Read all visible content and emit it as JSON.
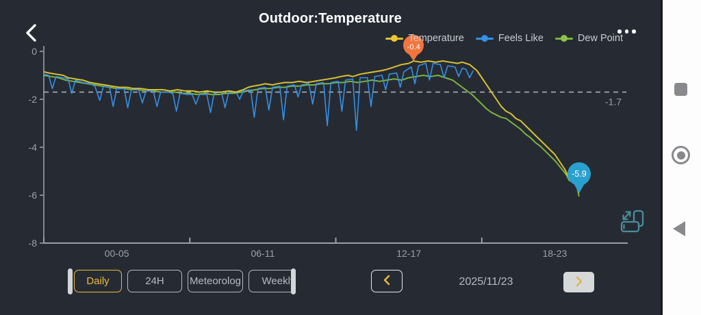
{
  "header": {
    "title": "Outdoor:Temperature",
    "back_icon": "chevron-left",
    "menu_icon": "ellipsis-horizontal"
  },
  "legend": {
    "items": [
      {
        "label": "Temperature",
        "line": "#d9c132",
        "dot": "#f0c62f"
      },
      {
        "label": "Feels Like",
        "line": "#3490e8",
        "dot": "#3490e8"
      },
      {
        "label": "Dew Point",
        "line": "#7cb33e",
        "dot": "#8bc34a"
      }
    ]
  },
  "chart_data": {
    "type": "line",
    "title": "Outdoor:Temperature",
    "xlabel": "",
    "ylabel": "",
    "xlim": [
      0,
      24
    ],
    "ylim": [
      0,
      -8
    ],
    "grid": false,
    "legend_position": "top-right",
    "yticks": [
      {
        "value": 0,
        "label": "0"
      },
      {
        "value": -2,
        "label": "-2"
      },
      {
        "value": -4,
        "label": "-4"
      },
      {
        "value": -6,
        "label": "-6"
      },
      {
        "value": -8,
        "label": "-8"
      }
    ],
    "xticks": [
      0,
      6,
      12,
      18
    ],
    "xtick_labels": [
      {
        "pos": 3,
        "label": "00-05"
      },
      {
        "pos": 9,
        "label": "06-11"
      },
      {
        "pos": 15,
        "label": "12-17"
      },
      {
        "pos": 21,
        "label": "18-23"
      }
    ],
    "reference_line": {
      "value": -1.7,
      "label": "-1.7"
    },
    "markers": [
      {
        "type": "pin",
        "series": "Temperature",
        "x": 15.2,
        "y": -0.4,
        "label": "-0.4",
        "color": "#f2753d"
      },
      {
        "type": "balloon",
        "series": "Temperature",
        "x": 22.0,
        "y": -5.9,
        "label": "-5.9",
        "color": "#2aa0cf"
      }
    ],
    "series": [
      {
        "name": "Temperature",
        "color": "#d9c132",
        "width": 2,
        "points": [
          [
            0,
            -0.85
          ],
          [
            0.2,
            -0.9
          ],
          [
            0.5,
            -0.95
          ],
          [
            0.8,
            -1.0
          ],
          [
            1.0,
            -1.1
          ],
          [
            1.3,
            -1.15
          ],
          [
            1.6,
            -1.2
          ],
          [
            1.9,
            -1.3
          ],
          [
            2.2,
            -1.35
          ],
          [
            2.5,
            -1.4
          ],
          [
            2.8,
            -1.45
          ],
          [
            3.1,
            -1.5
          ],
          [
            3.4,
            -1.5
          ],
          [
            3.7,
            -1.55
          ],
          [
            4.0,
            -1.55
          ],
          [
            4.3,
            -1.6
          ],
          [
            4.6,
            -1.6
          ],
          [
            4.9,
            -1.6
          ],
          [
            5.2,
            -1.65
          ],
          [
            5.5,
            -1.6
          ],
          [
            5.8,
            -1.65
          ],
          [
            6.1,
            -1.65
          ],
          [
            6.4,
            -1.7
          ],
          [
            6.7,
            -1.65
          ],
          [
            7.0,
            -1.7
          ],
          [
            7.3,
            -1.7
          ],
          [
            7.6,
            -1.65
          ],
          [
            7.9,
            -1.7
          ],
          [
            8.2,
            -1.6
          ],
          [
            8.4,
            -1.5
          ],
          [
            8.6,
            -1.45
          ],
          [
            8.9,
            -1.4
          ],
          [
            9.1,
            -1.35
          ],
          [
            9.4,
            -1.4
          ],
          [
            9.6,
            -1.35
          ],
          [
            9.9,
            -1.3
          ],
          [
            10.2,
            -1.3
          ],
          [
            10.5,
            -1.25
          ],
          [
            10.8,
            -1.3
          ],
          [
            11.1,
            -1.25
          ],
          [
            11.4,
            -1.2
          ],
          [
            11.7,
            -1.15
          ],
          [
            12.0,
            -1.1
          ],
          [
            12.2,
            -1.05
          ],
          [
            12.5,
            -1.0
          ],
          [
            12.7,
            -1.05
          ],
          [
            13.0,
            -0.95
          ],
          [
            13.3,
            -0.9
          ],
          [
            13.6,
            -0.85
          ],
          [
            13.9,
            -0.8
          ],
          [
            14.1,
            -0.75
          ],
          [
            14.4,
            -0.65
          ],
          [
            14.7,
            -0.55
          ],
          [
            15.0,
            -0.5
          ],
          [
            15.2,
            -0.4
          ],
          [
            15.5,
            -0.45
          ],
          [
            15.8,
            -0.4
          ],
          [
            16.1,
            -0.45
          ],
          [
            16.4,
            -0.4
          ],
          [
            16.7,
            -0.45
          ],
          [
            17.0,
            -0.5
          ],
          [
            17.2,
            -0.45
          ],
          [
            17.5,
            -0.55
          ],
          [
            17.8,
            -0.8
          ],
          [
            18.0,
            -1.1
          ],
          [
            18.2,
            -1.4
          ],
          [
            18.4,
            -1.7
          ],
          [
            18.6,
            -2.0
          ],
          [
            18.8,
            -2.3
          ],
          [
            19.0,
            -2.5
          ],
          [
            19.2,
            -2.6
          ],
          [
            19.4,
            -2.8
          ],
          [
            19.6,
            -2.9
          ],
          [
            19.8,
            -3.1
          ],
          [
            20.0,
            -3.3
          ],
          [
            20.2,
            -3.5
          ],
          [
            20.4,
            -3.7
          ],
          [
            20.6,
            -3.9
          ],
          [
            20.8,
            -4.1
          ],
          [
            21.0,
            -4.3
          ],
          [
            21.2,
            -4.6
          ],
          [
            21.4,
            -4.9
          ],
          [
            21.5,
            -5.1
          ],
          [
            21.6,
            -5.3
          ],
          [
            21.7,
            -5.2
          ],
          [
            21.8,
            -5.4
          ],
          [
            21.9,
            -5.5
          ],
          [
            22.0,
            -5.9
          ]
        ]
      },
      {
        "name": "Feels Like",
        "color": "#3490e8",
        "width": 1.6,
        "points": [
          [
            0,
            -0.95
          ],
          [
            0.2,
            -1.0
          ],
          [
            0.35,
            -1.55
          ],
          [
            0.5,
            -1.05
          ],
          [
            0.8,
            -1.1
          ],
          [
            1.0,
            -1.15
          ],
          [
            1.15,
            -1.75
          ],
          [
            1.3,
            -1.2
          ],
          [
            1.6,
            -1.3
          ],
          [
            1.9,
            -1.35
          ],
          [
            2.1,
            -1.45
          ],
          [
            2.3,
            -2.05
          ],
          [
            2.45,
            -1.45
          ],
          [
            2.7,
            -1.5
          ],
          [
            2.85,
            -2.3
          ],
          [
            3.0,
            -1.55
          ],
          [
            3.3,
            -1.55
          ],
          [
            3.45,
            -2.35
          ],
          [
            3.6,
            -1.6
          ],
          [
            3.9,
            -1.6
          ],
          [
            4.05,
            -2.15
          ],
          [
            4.2,
            -1.65
          ],
          [
            4.5,
            -1.65
          ],
          [
            4.65,
            -2.3
          ],
          [
            4.8,
            -1.7
          ],
          [
            5.1,
            -1.7
          ],
          [
            5.3,
            -1.75
          ],
          [
            5.45,
            -2.5
          ],
          [
            5.6,
            -1.75
          ],
          [
            5.9,
            -1.8
          ],
          [
            6.1,
            -1.8
          ],
          [
            6.25,
            -2.2
          ],
          [
            6.4,
            -1.8
          ],
          [
            6.7,
            -1.8
          ],
          [
            6.85,
            -2.55
          ],
          [
            7.0,
            -1.75
          ],
          [
            7.3,
            -1.7
          ],
          [
            7.45,
            -2.35
          ],
          [
            7.6,
            -1.7
          ],
          [
            7.9,
            -1.7
          ],
          [
            8.05,
            -2.0
          ],
          [
            8.2,
            -1.65
          ],
          [
            8.5,
            -1.6
          ],
          [
            8.65,
            -2.75
          ],
          [
            8.8,
            -1.55
          ],
          [
            9.1,
            -1.5
          ],
          [
            9.25,
            -2.45
          ],
          [
            9.4,
            -1.5
          ],
          [
            9.7,
            -1.45
          ],
          [
            9.85,
            -2.85
          ],
          [
            10.0,
            -1.45
          ],
          [
            10.3,
            -1.4
          ],
          [
            10.45,
            -1.9
          ],
          [
            10.6,
            -1.4
          ],
          [
            10.9,
            -1.35
          ],
          [
            11.05,
            -2.2
          ],
          [
            11.2,
            -1.35
          ],
          [
            11.5,
            -1.3
          ],
          [
            11.65,
            -3.1
          ],
          [
            11.8,
            -1.3
          ],
          [
            12.1,
            -1.25
          ],
          [
            12.25,
            -2.5
          ],
          [
            12.4,
            -1.2
          ],
          [
            12.7,
            -1.15
          ],
          [
            12.85,
            -3.3
          ],
          [
            13.0,
            -1.1
          ],
          [
            13.3,
            -1.1
          ],
          [
            13.45,
            -2.3
          ],
          [
            13.6,
            -1.05
          ],
          [
            13.9,
            -1.0
          ],
          [
            14.05,
            -1.6
          ],
          [
            14.2,
            -0.95
          ],
          [
            14.5,
            -0.9
          ],
          [
            14.65,
            -1.5
          ],
          [
            14.8,
            -0.85
          ],
          [
            15.1,
            -0.65
          ],
          [
            15.25,
            -1.35
          ],
          [
            15.4,
            -0.6
          ],
          [
            15.7,
            -0.5
          ],
          [
            15.85,
            -1.2
          ],
          [
            16.0,
            -0.5
          ],
          [
            16.3,
            -0.55
          ],
          [
            16.45,
            -1.1
          ],
          [
            16.6,
            -0.6
          ],
          [
            16.9,
            -0.65
          ],
          [
            17.05,
            -1.05
          ],
          [
            17.2,
            -0.7
          ],
          [
            17.35,
            -0.75
          ],
          [
            17.5,
            -1.1
          ],
          [
            17.65,
            -0.8
          ]
        ]
      },
      {
        "name": "Dew Point",
        "color": "#7cb33e",
        "width": 2,
        "points": [
          [
            0,
            -1.0
          ],
          [
            0.3,
            -1.05
          ],
          [
            0.6,
            -1.1
          ],
          [
            0.9,
            -1.2
          ],
          [
            1.2,
            -1.25
          ],
          [
            1.5,
            -1.3
          ],
          [
            1.8,
            -1.35
          ],
          [
            2.1,
            -1.4
          ],
          [
            2.4,
            -1.45
          ],
          [
            2.7,
            -1.5
          ],
          [
            3.0,
            -1.55
          ],
          [
            3.3,
            -1.55
          ],
          [
            3.6,
            -1.6
          ],
          [
            3.9,
            -1.6
          ],
          [
            4.2,
            -1.65
          ],
          [
            4.5,
            -1.65
          ],
          [
            4.8,
            -1.7
          ],
          [
            5.1,
            -1.7
          ],
          [
            5.4,
            -1.7
          ],
          [
            5.7,
            -1.75
          ],
          [
            6.0,
            -1.75
          ],
          [
            6.3,
            -1.8
          ],
          [
            6.6,
            -1.75
          ],
          [
            6.9,
            -1.8
          ],
          [
            7.2,
            -1.8
          ],
          [
            7.5,
            -1.75
          ],
          [
            7.8,
            -1.75
          ],
          [
            8.1,
            -1.7
          ],
          [
            8.4,
            -1.65
          ],
          [
            8.7,
            -1.6
          ],
          [
            9.0,
            -1.55
          ],
          [
            9.3,
            -1.55
          ],
          [
            9.6,
            -1.5
          ],
          [
            9.9,
            -1.5
          ],
          [
            10.2,
            -1.45
          ],
          [
            10.5,
            -1.45
          ],
          [
            10.8,
            -1.4
          ],
          [
            11.1,
            -1.4
          ],
          [
            11.4,
            -1.35
          ],
          [
            11.7,
            -1.35
          ],
          [
            12.0,
            -1.3
          ],
          [
            12.3,
            -1.3
          ],
          [
            12.6,
            -1.25
          ],
          [
            12.9,
            -1.3
          ],
          [
            13.2,
            -1.25
          ],
          [
            13.5,
            -1.2
          ],
          [
            13.8,
            -1.25
          ],
          [
            14.1,
            -1.2
          ],
          [
            14.4,
            -1.15
          ],
          [
            14.7,
            -1.2
          ],
          [
            15.0,
            -1.1
          ],
          [
            15.3,
            -1.05
          ],
          [
            15.6,
            -1.0
          ],
          [
            15.9,
            -1.05
          ],
          [
            16.2,
            -1.0
          ],
          [
            16.5,
            -1.1
          ],
          [
            16.8,
            -1.2
          ],
          [
            17.0,
            -1.35
          ],
          [
            17.2,
            -1.5
          ],
          [
            17.4,
            -1.65
          ],
          [
            17.6,
            -1.8
          ],
          [
            17.8,
            -2.0
          ],
          [
            18.0,
            -2.2
          ],
          [
            18.2,
            -2.4
          ],
          [
            18.4,
            -2.55
          ],
          [
            18.6,
            -2.65
          ],
          [
            18.8,
            -2.75
          ],
          [
            19.0,
            -2.8
          ],
          [
            19.2,
            -2.95
          ],
          [
            19.4,
            -3.1
          ],
          [
            19.6,
            -3.25
          ],
          [
            19.8,
            -3.45
          ],
          [
            20.0,
            -3.6
          ],
          [
            20.2,
            -3.8
          ],
          [
            20.4,
            -3.95
          ],
          [
            20.6,
            -4.15
          ],
          [
            20.8,
            -4.35
          ],
          [
            21.0,
            -4.55
          ],
          [
            21.2,
            -4.8
          ],
          [
            21.4,
            -5.05
          ],
          [
            21.5,
            -5.2
          ],
          [
            21.6,
            -5.4
          ],
          [
            21.7,
            -5.3
          ],
          [
            21.8,
            -5.5
          ],
          [
            21.9,
            -5.6
          ],
          [
            22.0,
            -6.05
          ]
        ]
      }
    ]
  },
  "controls": {
    "tabs": [
      {
        "label": "Daily",
        "active": true
      },
      {
        "label": "24H",
        "active": false
      },
      {
        "label": "Meteorolog",
        "active": false
      },
      {
        "label": "Weekly",
        "active": false
      }
    ],
    "prev_icon": "chevron-left",
    "date": "2025/11/23",
    "next_icon": "chevron-right",
    "rotate_icon": "rotate-screen"
  },
  "navbar": {
    "icons": [
      "recents-square",
      "home-circle",
      "back-triangle"
    ]
  },
  "colors": {
    "background": "#262b33",
    "accent_yellow": "#edbb3f",
    "axis_text": "#9aa1a8",
    "pin_orange": "#f2753d",
    "balloon_blue": "#2aa0cf",
    "rotate_teal": "#4a8d9b"
  }
}
